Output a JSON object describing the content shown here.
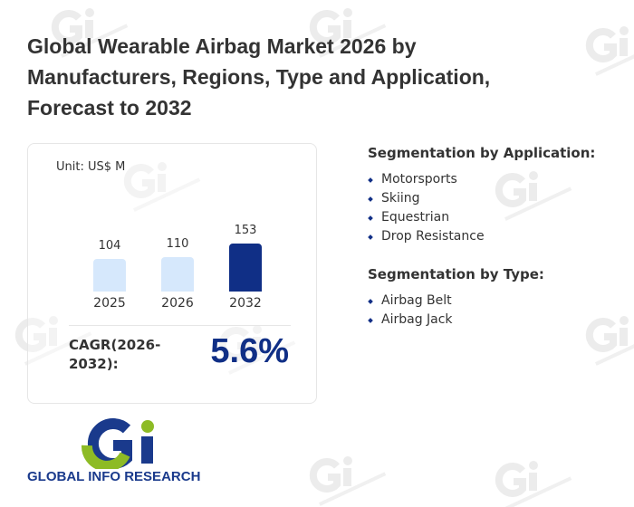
{
  "title": "Global Wearable Airbag Market 2026 by Manufacturers, Regions, Type and Application, Forecast to 2032",
  "watermark": "GLOBAL INFO RESEARCH",
  "chart_data": {
    "type": "bar",
    "unit": "Unit: US$ M",
    "categories": [
      "2025",
      "2026",
      "2032"
    ],
    "values": [
      104,
      110,
      153
    ],
    "colors": [
      "#d6e8fc",
      "#d6e8fc",
      "#102f86"
    ],
    "ylim": [
      0,
      153
    ]
  },
  "cagr": {
    "label": "CAGR(2026-2032):",
    "value": "5.6%"
  },
  "application": {
    "heading": "Segmentation by Application:",
    "items": [
      "Motorsports",
      "Skiing",
      "Equestrian",
      "Drop Resistance"
    ]
  },
  "type": {
    "heading": "Segmentation by Type:",
    "items": [
      "Airbag Belt",
      "Airbag Jack"
    ]
  },
  "logo": {
    "text": "GLOBAL INFO RESEARCH",
    "mark": "Gi"
  }
}
